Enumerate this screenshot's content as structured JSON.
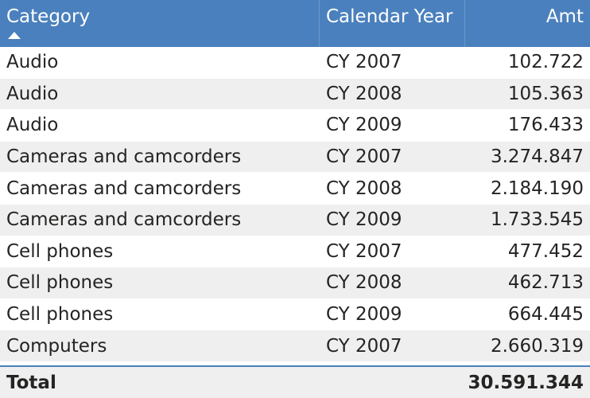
{
  "table": {
    "headers": {
      "category": "Category",
      "calendar_year": "Calendar Year",
      "amt": "Amt"
    },
    "rows": [
      {
        "category": "Audio",
        "year": "CY 2007",
        "amt": "102.722"
      },
      {
        "category": "Audio",
        "year": "CY 2008",
        "amt": "105.363"
      },
      {
        "category": "Audio",
        "year": "CY 2009",
        "amt": "176.433"
      },
      {
        "category": "Cameras and camcorders",
        "year": "CY 2007",
        "amt": "3.274.847"
      },
      {
        "category": "Cameras and camcorders",
        "year": "CY 2008",
        "amt": "2.184.190"
      },
      {
        "category": "Cameras and camcorders",
        "year": "CY 2009",
        "amt": "1.733.545"
      },
      {
        "category": "Cell phones",
        "year": "CY 2007",
        "amt": "477.452"
      },
      {
        "category": "Cell phones",
        "year": "CY 2008",
        "amt": "462.713"
      },
      {
        "category": "Cell phones",
        "year": "CY 2009",
        "amt": "664.445"
      },
      {
        "category": "Computers",
        "year": "CY 2007",
        "amt": "2.660.319"
      }
    ],
    "total": {
      "label": "Total",
      "amt": "30.591.344"
    },
    "sort": {
      "column": "category",
      "direction": "ascending",
      "icon": "sort-ascending-icon"
    },
    "colors": {
      "header_bg": "#4a80bd",
      "header_text": "#ffffff",
      "alt_row_bg": "#efefef",
      "text": "#252423"
    }
  }
}
